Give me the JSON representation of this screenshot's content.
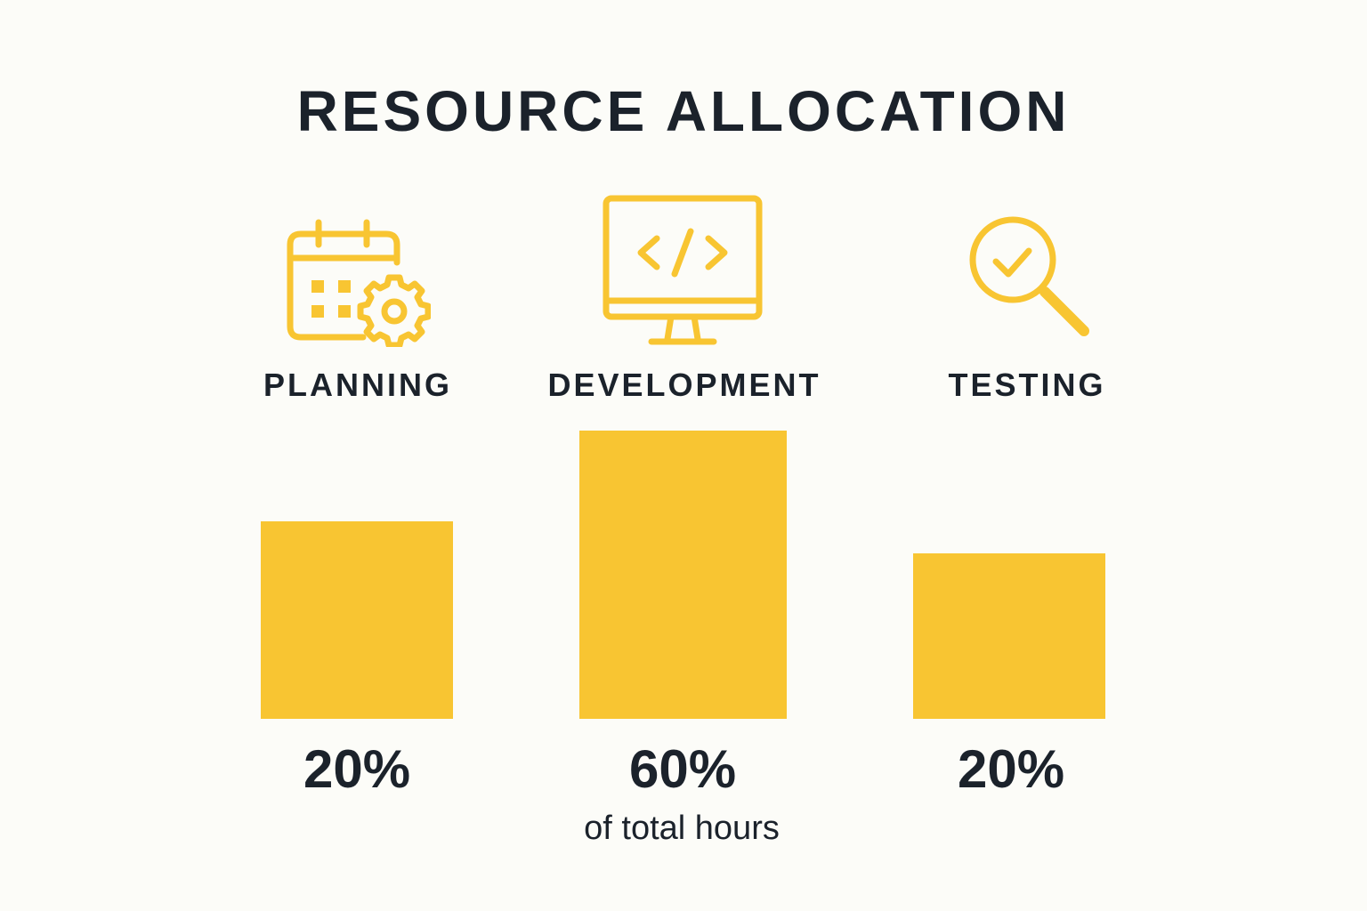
{
  "chart_data": {
    "type": "bar",
    "title": "RESOURCE ALLOCATION",
    "categories": [
      "PLANNING",
      "DEVELOPMENT",
      "TESTING"
    ],
    "values": [
      20,
      60,
      20
    ],
    "value_labels": [
      "20%",
      "60%",
      "20%"
    ],
    "caption": "of total hours",
    "icons": [
      "calendar-gear-icon",
      "monitor-code-icon",
      "magnifier-check-icon"
    ],
    "bar_color": "#f8c532",
    "text_color": "#1b222b",
    "background_color": "#fcfcf8",
    "grid": false,
    "axes_visible": false
  }
}
